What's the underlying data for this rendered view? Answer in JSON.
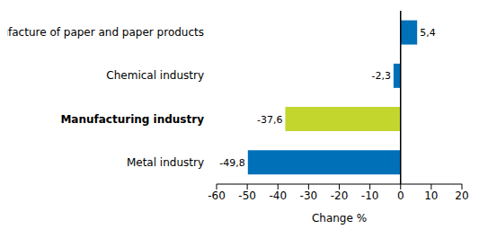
{
  "chart_data": {
    "type": "bar",
    "orientation": "horizontal",
    "categories": [
      "Manufacture of paper and paper products",
      "Chemical industry",
      "Manufacturing industry",
      "Metal industry"
    ],
    "values": [
      5.4,
      -2.3,
      -37.6,
      -49.8
    ],
    "value_labels": [
      "5,4",
      "-2,3",
      "-37,6",
      "-49,8"
    ],
    "data_labels": true,
    "colors": [
      "#0070b8",
      "#0070b8",
      "#c2d62e",
      "#0070b8"
    ],
    "xlabel": "Change %",
    "xlim": [
      -60,
      20
    ],
    "xticks": [
      -60,
      -50,
      -40,
      -30,
      -20,
      -10,
      0,
      10,
      20
    ],
    "grid": false
  }
}
